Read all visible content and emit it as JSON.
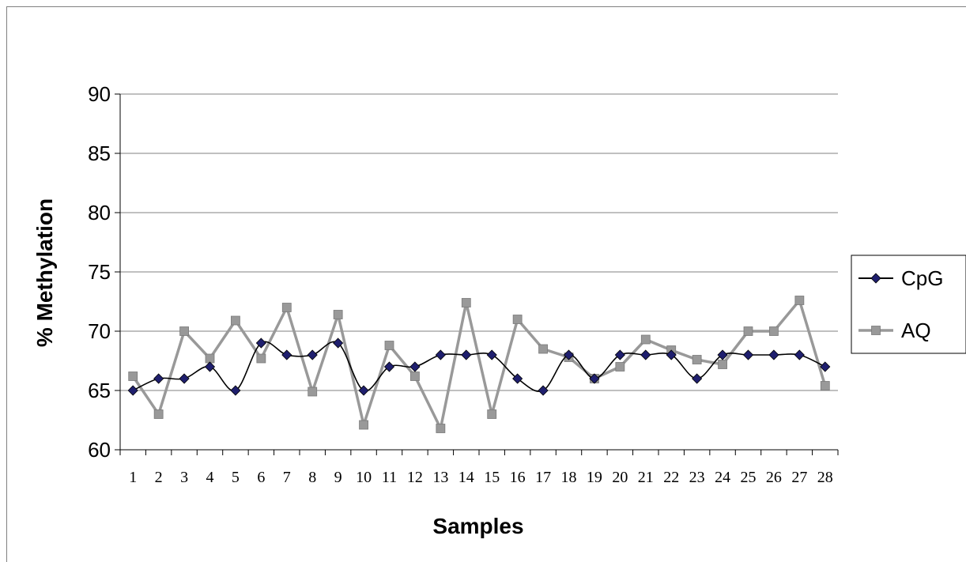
{
  "chart_data": {
    "type": "line",
    "title": "",
    "xlabel": "Samples",
    "ylabel": "% Methylation",
    "ylim": [
      60,
      90
    ],
    "yticks": [
      60,
      65,
      70,
      75,
      80,
      85,
      90
    ],
    "grid": "horizontal",
    "legend_position": "right",
    "categories": [
      "1",
      "2",
      "3",
      "4",
      "5",
      "6",
      "7",
      "8",
      "9",
      "10",
      "11",
      "12",
      "13",
      "14",
      "15",
      "16",
      "17",
      "18",
      "19",
      "20",
      "21",
      "22",
      "23",
      "24",
      "25",
      "26",
      "27",
      "28"
    ],
    "series": [
      {
        "name": "CpG",
        "color": "#000000",
        "marker_color": "#1f1f6e",
        "marker": "diamond",
        "smooth": true,
        "values": [
          65,
          66,
          66,
          67,
          65,
          69,
          68,
          68,
          69,
          65,
          67,
          67,
          68,
          68,
          68,
          66,
          65,
          68,
          66,
          68,
          68,
          68,
          66,
          68,
          68,
          68,
          68,
          67
        ]
      },
      {
        "name": "AQ",
        "color": "#999999",
        "marker_color": "#999999",
        "marker": "square",
        "smooth": false,
        "values": [
          66.2,
          63,
          70,
          67.7,
          70.9,
          67.7,
          72,
          64.9,
          71.4,
          62.1,
          68.8,
          66.2,
          61.8,
          72.4,
          63,
          71,
          68.5,
          67.8,
          66,
          67,
          69.3,
          68.4,
          67.6,
          67.2,
          70,
          70,
          72.6,
          65.4
        ]
      }
    ]
  }
}
